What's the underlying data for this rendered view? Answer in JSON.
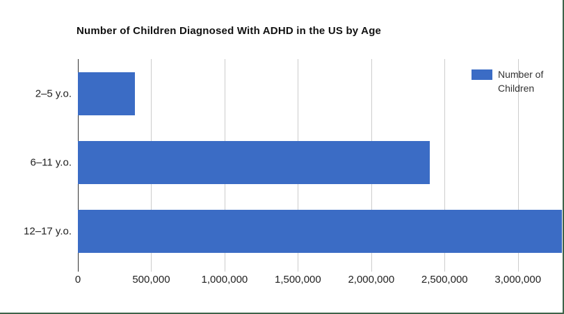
{
  "chart_data": {
    "type": "bar",
    "orientation": "horizontal",
    "title": "Number of Children Diagnosed With ADHD in the US by Age",
    "categories": [
      "2–5 y.o.",
      "6–11 y.o.",
      "12–17 y.o."
    ],
    "series": [
      {
        "name": "Number of Children",
        "values": [
          388000,
          2400000,
          3300000
        ]
      }
    ],
    "xlabel": "",
    "ylabel": "",
    "xlim": [
      0,
      3300000
    ],
    "x_ticks": [
      0,
      500000,
      1000000,
      1500000,
      2000000,
      2500000,
      3000000
    ],
    "x_tick_labels": [
      "0",
      "500,000",
      "1,000,000",
      "1,500,000",
      "2,000,000",
      "2,500,000",
      "3,000,000"
    ],
    "grid": true,
    "legend_position": "top-right-inside",
    "note": "third bar clipped at right edge of image"
  },
  "colors": {
    "bar": "#3b6cc5",
    "grid": "#cccccc",
    "axis": "#333333",
    "border": "#3e6349"
  }
}
